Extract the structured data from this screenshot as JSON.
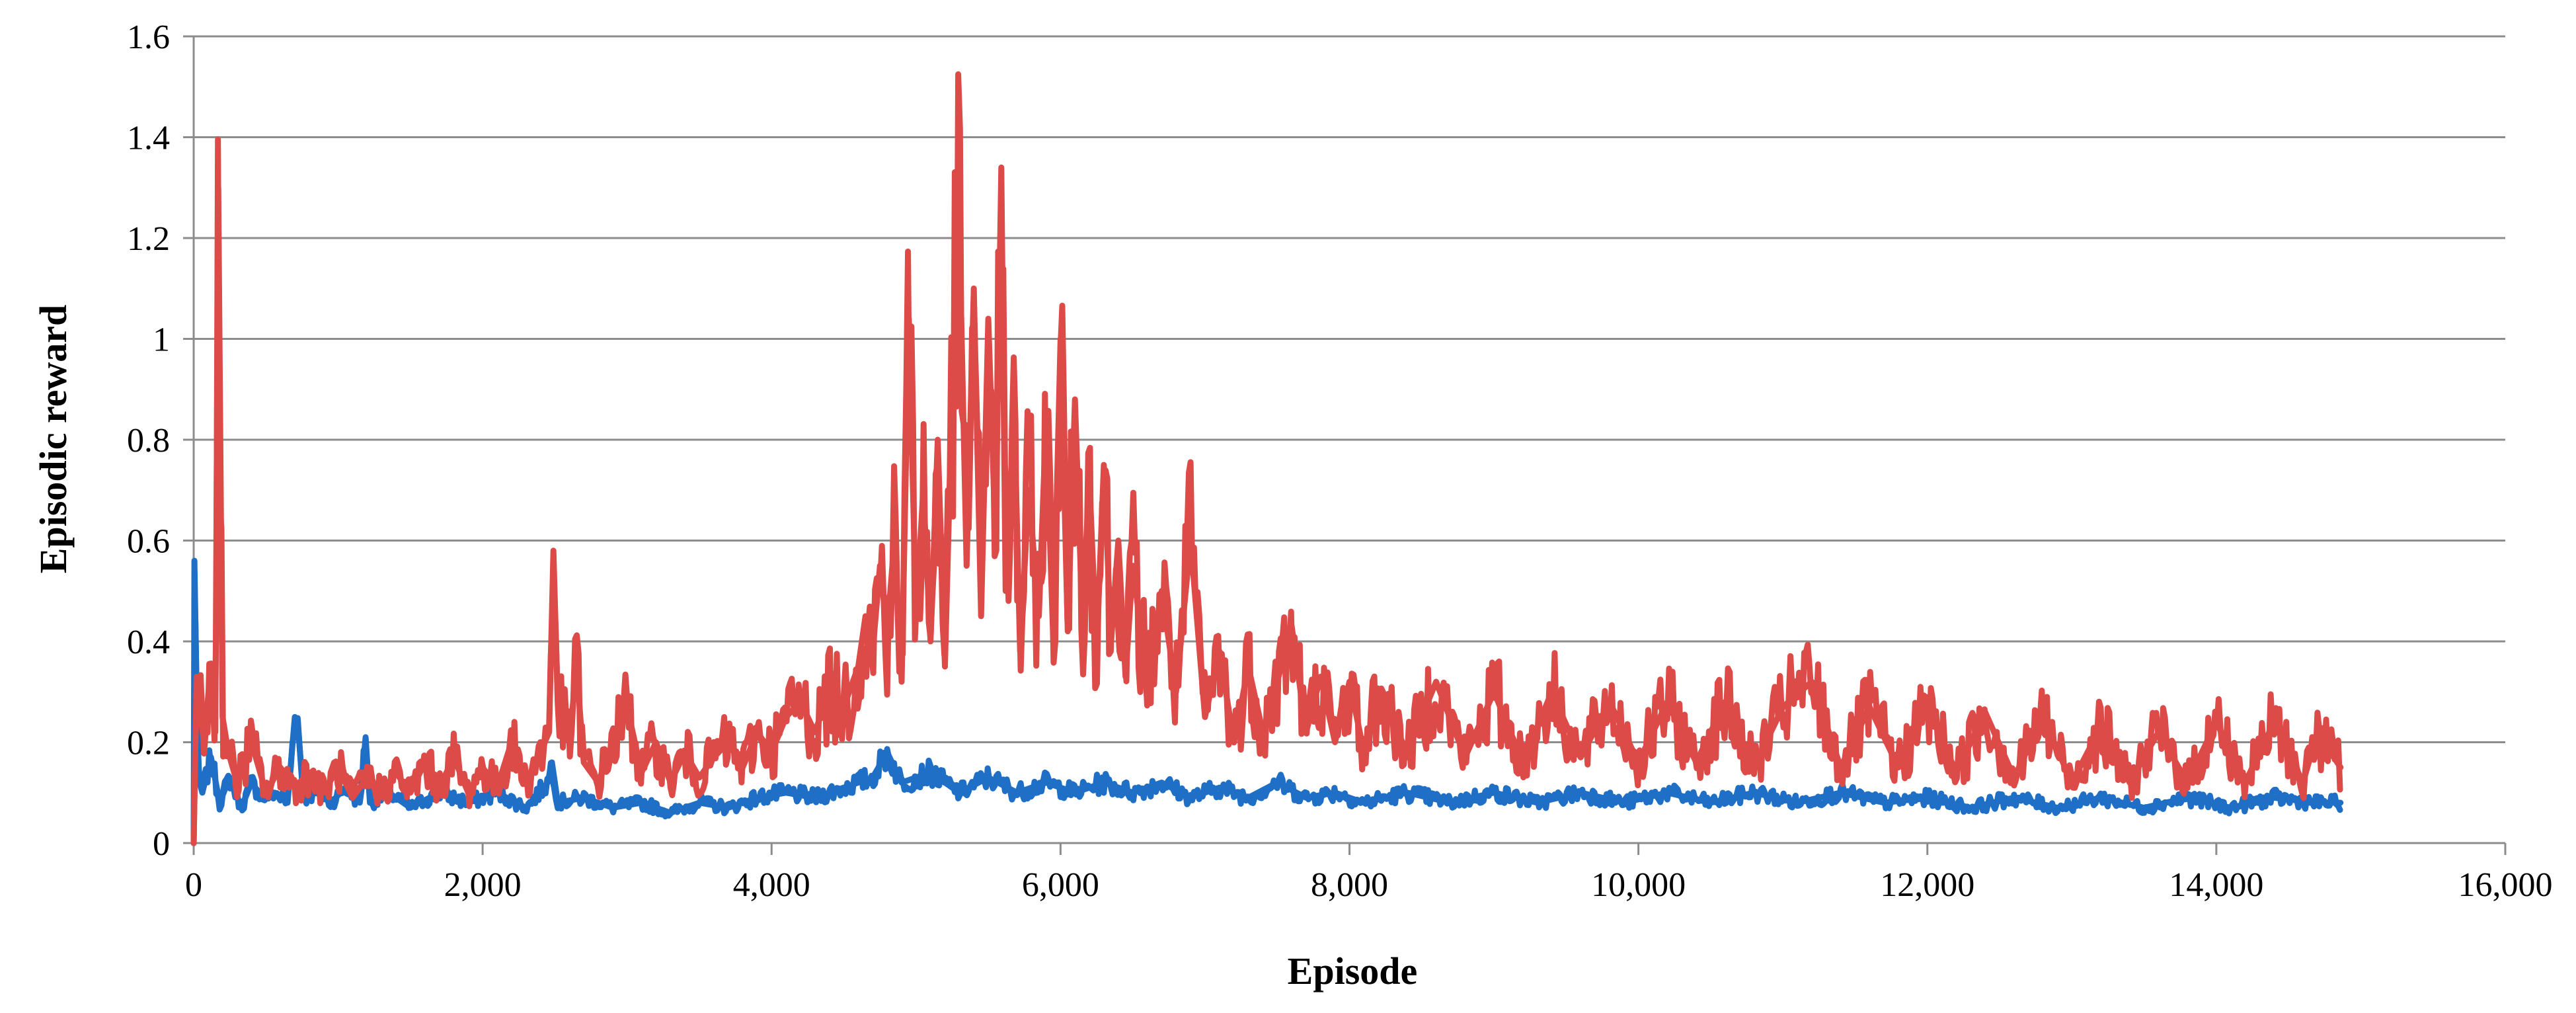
{
  "chart_data": {
    "type": "line",
    "title": "",
    "xlabel": "Episode",
    "ylabel": "Episodic reward",
    "xlim": [
      0,
      16000
    ],
    "ylim": [
      0,
      1.6
    ],
    "x_ticks": [
      0,
      2000,
      4000,
      6000,
      8000,
      10000,
      12000,
      14000,
      16000
    ],
    "x_tick_labels": [
      "0",
      "2,000",
      "4,000",
      "6,000",
      "8,000",
      "10,000",
      "12,000",
      "14,000",
      "16,000"
    ],
    "y_ticks": [
      0,
      0.2,
      0.4,
      0.6,
      0.8,
      1,
      1.2,
      1.4,
      1.6
    ],
    "y_tick_labels": [
      "0",
      "0.2",
      "0.4",
      "0.6",
      "0.8",
      "1",
      "1.2",
      "1.4",
      "1.6"
    ],
    "grid": "horizontal",
    "legend": "none",
    "x_end": 14860,
    "series": [
      {
        "color": "#1f6fc6",
        "points": [
          [
            0,
            0.0
          ],
          [
            5,
            0.56
          ],
          [
            30,
            0.13
          ],
          [
            60,
            0.1
          ],
          [
            120,
            0.17
          ],
          [
            180,
            0.08
          ],
          [
            250,
            0.13
          ],
          [
            330,
            0.07
          ],
          [
            400,
            0.12
          ],
          [
            480,
            0.09
          ],
          [
            560,
            0.1
          ],
          [
            650,
            0.08
          ],
          [
            700,
            0.25
          ],
          [
            720,
            0.24
          ],
          [
            760,
            0.09
          ],
          [
            850,
            0.1
          ],
          [
            950,
            0.08
          ],
          [
            1050,
            0.11
          ],
          [
            1150,
            0.08
          ],
          [
            1190,
            0.21
          ],
          [
            1220,
            0.08
          ],
          [
            1350,
            0.1
          ],
          [
            1500,
            0.07
          ],
          [
            1700,
            0.1
          ],
          [
            1900,
            0.08
          ],
          [
            2100,
            0.1
          ],
          [
            2300,
            0.07
          ],
          [
            2450,
            0.12
          ],
          [
            2480,
            0.16
          ],
          [
            2520,
            0.08
          ],
          [
            2700,
            0.09
          ],
          [
            2900,
            0.07
          ],
          [
            3100,
            0.08
          ],
          [
            3300,
            0.06
          ],
          [
            3500,
            0.08
          ],
          [
            3700,
            0.07
          ],
          [
            3900,
            0.09
          ],
          [
            4100,
            0.1
          ],
          [
            4300,
            0.09
          ],
          [
            4500,
            0.11
          ],
          [
            4700,
            0.13
          ],
          [
            4800,
            0.18
          ],
          [
            4900,
            0.12
          ],
          [
            5100,
            0.14
          ],
          [
            5300,
            0.1
          ],
          [
            5500,
            0.13
          ],
          [
            5700,
            0.1
          ],
          [
            5900,
            0.12
          ],
          [
            6100,
            0.1
          ],
          [
            6300,
            0.12
          ],
          [
            6500,
            0.1
          ],
          [
            6700,
            0.12
          ],
          [
            6900,
            0.09
          ],
          [
            7100,
            0.11
          ],
          [
            7300,
            0.09
          ],
          [
            7500,
            0.12
          ],
          [
            7700,
            0.09
          ],
          [
            7900,
            0.1
          ],
          [
            8100,
            0.08
          ],
          [
            8400,
            0.1
          ],
          [
            8700,
            0.08
          ],
          [
            9000,
            0.1
          ],
          [
            9300,
            0.08
          ],
          [
            9600,
            0.1
          ],
          [
            9900,
            0.08
          ],
          [
            10200,
            0.1
          ],
          [
            10500,
            0.08
          ],
          [
            10800,
            0.1
          ],
          [
            11100,
            0.08
          ],
          [
            11400,
            0.1
          ],
          [
            11700,
            0.08
          ],
          [
            12000,
            0.09
          ],
          [
            12300,
            0.07
          ],
          [
            12600,
            0.09
          ],
          [
            12900,
            0.07
          ],
          [
            13200,
            0.09
          ],
          [
            13500,
            0.07
          ],
          [
            13800,
            0.09
          ],
          [
            14100,
            0.07
          ],
          [
            14400,
            0.09
          ],
          [
            14700,
            0.08
          ],
          [
            14860,
            0.08
          ]
        ]
      },
      {
        "color": "#dd4b48",
        "points": [
          [
            0,
            0.0
          ],
          [
            20,
            0.33
          ],
          [
            70,
            0.2
          ],
          [
            120,
            0.35
          ],
          [
            150,
            0.22
          ],
          [
            170,
            1.3
          ],
          [
            200,
            0.25
          ],
          [
            240,
            0.18
          ],
          [
            300,
            0.12
          ],
          [
            400,
            0.2
          ],
          [
            500,
            0.1
          ],
          [
            600,
            0.15
          ],
          [
            700,
            0.11
          ],
          [
            800,
            0.14
          ],
          [
            900,
            0.1
          ],
          [
            1000,
            0.15
          ],
          [
            1100,
            0.09
          ],
          [
            1200,
            0.13
          ],
          [
            1300,
            0.1
          ],
          [
            1400,
            0.14
          ],
          [
            1500,
            0.1
          ],
          [
            1600,
            0.16
          ],
          [
            1700,
            0.11
          ],
          [
            1800,
            0.17
          ],
          [
            1900,
            0.1
          ],
          [
            2000,
            0.15
          ],
          [
            2100,
            0.11
          ],
          [
            2200,
            0.2
          ],
          [
            2300,
            0.12
          ],
          [
            2400,
            0.18
          ],
          [
            2460,
            0.22
          ],
          [
            2490,
            0.58
          ],
          [
            2520,
            0.28
          ],
          [
            2600,
            0.2
          ],
          [
            2650,
            0.35
          ],
          [
            2700,
            0.16
          ],
          [
            2800,
            0.12
          ],
          [
            2900,
            0.2
          ],
          [
            3000,
            0.27
          ],
          [
            3100,
            0.14
          ],
          [
            3200,
            0.2
          ],
          [
            3300,
            0.12
          ],
          [
            3400,
            0.18
          ],
          [
            3500,
            0.13
          ],
          [
            3600,
            0.17
          ],
          [
            3700,
            0.2
          ],
          [
            3800,
            0.15
          ],
          [
            3900,
            0.22
          ],
          [
            4000,
            0.18
          ],
          [
            4100,
            0.25
          ],
          [
            4200,
            0.28
          ],
          [
            4300,
            0.22
          ],
          [
            4400,
            0.3
          ],
          [
            4500,
            0.27
          ],
          [
            4600,
            0.35
          ],
          [
            4650,
            0.45
          ],
          [
            4700,
            0.38
          ],
          [
            4750,
            0.55
          ],
          [
            4800,
            0.42
          ],
          [
            4850,
            0.6
          ],
          [
            4900,
            0.32
          ],
          [
            4950,
            1.04
          ],
          [
            5000,
            0.45
          ],
          [
            5050,
            0.7
          ],
          [
            5100,
            0.4
          ],
          [
            5150,
            0.8
          ],
          [
            5200,
            0.35
          ],
          [
            5250,
            0.9
          ],
          [
            5300,
            1.21
          ],
          [
            5350,
            0.55
          ],
          [
            5400,
            1.1
          ],
          [
            5450,
            0.45
          ],
          [
            5500,
            1.04
          ],
          [
            5550,
            0.6
          ],
          [
            5590,
            1.34
          ],
          [
            5620,
            0.5
          ],
          [
            5680,
            0.85
          ],
          [
            5720,
            0.38
          ],
          [
            5780,
            0.7
          ],
          [
            5850,
            0.45
          ],
          [
            5900,
            0.84
          ],
          [
            5950,
            0.4
          ],
          [
            6000,
            1.0
          ],
          [
            6050,
            0.42
          ],
          [
            6100,
            0.88
          ],
          [
            6150,
            0.45
          ],
          [
            6200,
            0.72
          ],
          [
            6250,
            0.38
          ],
          [
            6300,
            0.75
          ],
          [
            6350,
            0.4
          ],
          [
            6400,
            0.6
          ],
          [
            6450,
            0.33
          ],
          [
            6500,
            0.55
          ],
          [
            6600,
            0.32
          ],
          [
            6700,
            0.5
          ],
          [
            6800,
            0.3
          ],
          [
            6900,
            0.6
          ],
          [
            7000,
            0.25
          ],
          [
            7100,
            0.38
          ],
          [
            7200,
            0.2
          ],
          [
            7300,
            0.35
          ],
          [
            7400,
            0.22
          ],
          [
            7500,
            0.32
          ],
          [
            7600,
            0.43
          ],
          [
            7700,
            0.22
          ],
          [
            7800,
            0.33
          ],
          [
            7900,
            0.2
          ],
          [
            8000,
            0.32
          ],
          [
            8100,
            0.18
          ],
          [
            8200,
            0.3
          ],
          [
            8400,
            0.18
          ],
          [
            8600,
            0.32
          ],
          [
            8800,
            0.17
          ],
          [
            9000,
            0.3
          ],
          [
            9200,
            0.16
          ],
          [
            9400,
            0.3
          ],
          [
            9600,
            0.17
          ],
          [
            9800,
            0.28
          ],
          [
            10000,
            0.16
          ],
          [
            10200,
            0.28
          ],
          [
            10400,
            0.16
          ],
          [
            10600,
            0.28
          ],
          [
            10800,
            0.15
          ],
          [
            11000,
            0.27
          ],
          [
            11200,
            0.32
          ],
          [
            11400,
            0.15
          ],
          [
            11600,
            0.27
          ],
          [
            11800,
            0.15
          ],
          [
            12000,
            0.27
          ],
          [
            12200,
            0.14
          ],
          [
            12400,
            0.26
          ],
          [
            12600,
            0.13
          ],
          [
            12800,
            0.25
          ],
          [
            13000,
            0.12
          ],
          [
            13200,
            0.23
          ],
          [
            13400,
            0.12
          ],
          [
            13600,
            0.22
          ],
          [
            13800,
            0.12
          ],
          [
            14000,
            0.24
          ],
          [
            14200,
            0.12
          ],
          [
            14400,
            0.24
          ],
          [
            14600,
            0.12
          ],
          [
            14700,
            0.22
          ],
          [
            14860,
            0.15
          ]
        ]
      }
    ]
  }
}
